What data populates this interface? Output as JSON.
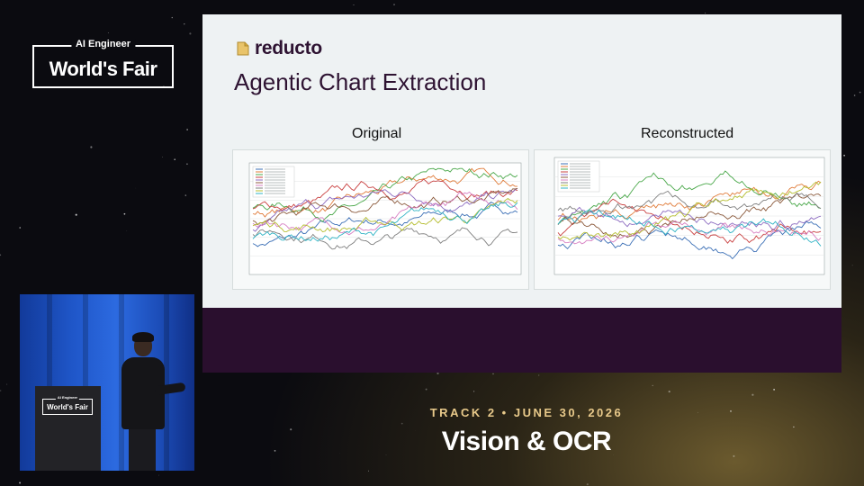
{
  "conference": {
    "logo_small": "AI Engineer",
    "logo_big": "World's Fair"
  },
  "slide": {
    "brand_name": "reducto",
    "brand_icon": "document-icon",
    "title": "Agentic Chart Extraction",
    "original_label": "Original",
    "reconstructed_label": "Reconstructed"
  },
  "video": {
    "podium_logo_small": "AI Engineer",
    "podium_logo_big": "World's Fair"
  },
  "session": {
    "track_line": "TRACK 2 • JUNE 30, 2026",
    "title": "Vision & OCR"
  },
  "colors": {
    "slide_bg": "#eef2f3",
    "slide_band": "#2a0f2e",
    "brand": "#2e1332",
    "track_gold": "#e8c98a",
    "series": [
      "#3b6fb6",
      "#e07b39",
      "#4aa84a",
      "#c94040",
      "#8c6bc0",
      "#8b5a3c",
      "#d77fc2",
      "#7f7f7f",
      "#b5bd2f",
      "#2fb3c4"
    ]
  }
}
